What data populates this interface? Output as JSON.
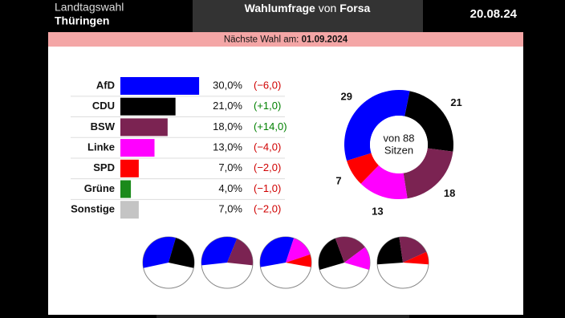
{
  "header": {
    "region_label": "Landtagswahl",
    "region": "Thüringen",
    "title": "Wahlumfrage",
    "title_connector": "von",
    "source": "Forsa",
    "date": "20.08.24"
  },
  "banner": {
    "label": "Nächste Wahl am:",
    "date": "01.09.2024"
  },
  "chart_data": [
    {
      "type": "bar",
      "categories": [
        "AfD",
        "CDU",
        "BSW",
        "Linke",
        "SPD",
        "Grüne",
        "Sonstige"
      ],
      "values": [
        30,
        21,
        18,
        13,
        7,
        4,
        7
      ],
      "value_labels": [
        "30,0%",
        "21,0%",
        "18,0%",
        "13,0%",
        "7,0%",
        "4,0%",
        "7,0%"
      ],
      "colors": [
        "#0000ff",
        "#000000",
        "#7b2352",
        "#ff00ff",
        "#ff0000",
        "#1b8a1b",
        "#c4c4c4"
      ],
      "changes": [
        -6,
        1,
        14,
        -4,
        -2,
        -1,
        -2
      ],
      "change_labels": [
        "(−6,0)",
        "(+1,0)",
        "(+14,0)",
        "(−4,0)",
        "(−2,0)",
        "(−1,0)",
        "(−2,0)"
      ]
    },
    {
      "type": "donut",
      "categories": [
        "CDU",
        "BSW",
        "Linke",
        "SPD",
        "AfD"
      ],
      "values": [
        21,
        18,
        13,
        7,
        29
      ],
      "colors": [
        "#000000",
        "#7b2352",
        "#ff00ff",
        "#ff0000",
        "#0000ff"
      ],
      "center_label": [
        "von 88",
        "Sitzen"
      ],
      "coalitions": [
        [
          "AfD",
          "CDU"
        ],
        [
          "AfD",
          "BSW"
        ],
        [
          "AfD",
          "Linke",
          "SPD"
        ],
        [
          "CDU",
          "BSW",
          "Linke"
        ],
        [
          "CDU",
          "BSW",
          "SPD"
        ]
      ]
    }
  ]
}
